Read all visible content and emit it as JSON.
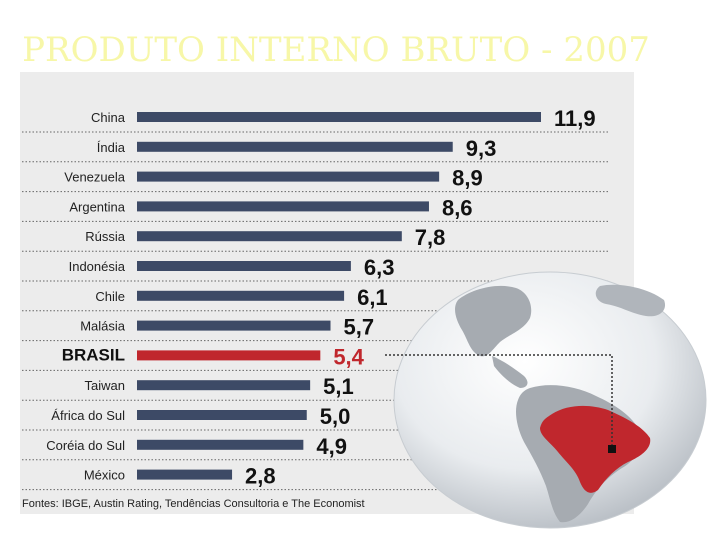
{
  "header": {
    "title": "PRODUTO INTERNO BRUTO - 2007"
  },
  "colors": {
    "bar": "#3d4a66",
    "highlight": "#c0272d",
    "panel": "#ececec",
    "title": "#f7f7a8"
  },
  "chart_data": {
    "type": "bar",
    "orientation": "horizontal",
    "title": "PRODUTO INTERNO BRUTO - 2007",
    "categories": [
      "China",
      "Índia",
      "Venezuela",
      "Argentina",
      "Rússia",
      "Indonésia",
      "Chile",
      "Malásia",
      "BRASIL",
      "Taiwan",
      "África do Sul",
      "Coréia do Sul",
      "México"
    ],
    "values": [
      11.9,
      9.3,
      8.9,
      8.6,
      7.8,
      6.3,
      6.1,
      5.7,
      5.4,
      5.1,
      5.0,
      4.9,
      2.8
    ],
    "value_labels": [
      "11,9",
      "9,3",
      "8,9",
      "8,6",
      "7,8",
      "6,3",
      "6,1",
      "5,7",
      "5,4",
      "5,1",
      "5,0",
      "4,9",
      "2,8"
    ],
    "highlight": "BRASIL",
    "xlim": [
      0,
      11.9
    ],
    "grid": false,
    "source": "Fontes: IBGE, Austin Rating, Tendências Consultoria e The Economist"
  }
}
